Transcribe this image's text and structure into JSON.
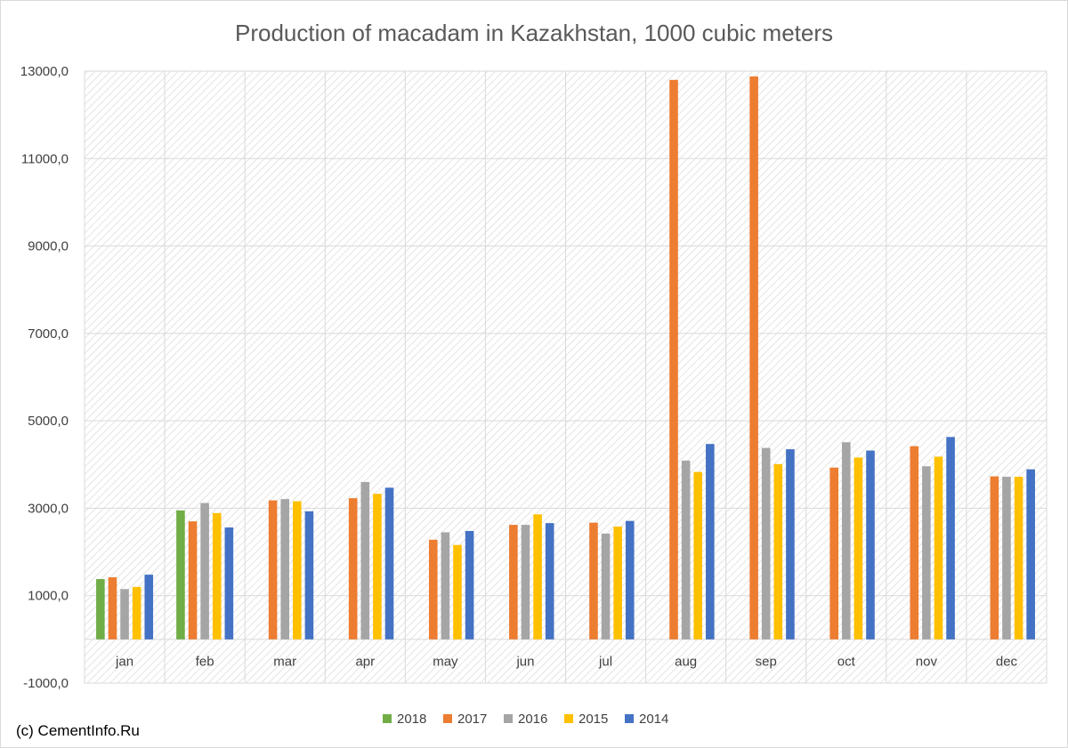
{
  "chart_data": {
    "type": "bar",
    "title": "Production of macadam in Kazakhstan, 1000 cubic meters",
    "categories": [
      "jan",
      "feb",
      "mar",
      "apr",
      "may",
      "jun",
      "jul",
      "aug",
      "sep",
      "oct",
      "nov",
      "dec"
    ],
    "series": [
      {
        "name": "2018",
        "color": "#70ad47",
        "values": [
          1380,
          2950,
          null,
          null,
          null,
          null,
          null,
          null,
          null,
          null,
          null,
          null
        ]
      },
      {
        "name": "2017",
        "color": "#ed7d31",
        "values": [
          1420,
          2700,
          3180,
          3230,
          2280,
          2620,
          2670,
          12800,
          12880,
          3930,
          4420,
          3730
        ]
      },
      {
        "name": "2016",
        "color": "#a5a5a5",
        "values": [
          1150,
          3120,
          3210,
          3600,
          2450,
          2620,
          2420,
          4090,
          4380,
          4510,
          3960,
          3720
        ]
      },
      {
        "name": "2015",
        "color": "#ffc000",
        "values": [
          1200,
          2890,
          3160,
          3330,
          2160,
          2860,
          2580,
          3830,
          4010,
          4160,
          4180,
          3720
        ]
      },
      {
        "name": "2014",
        "color": "#4472c4",
        "values": [
          1480,
          2560,
          2930,
          3470,
          2480,
          2660,
          2710,
          4470,
          4350,
          4320,
          4630,
          3890
        ]
      }
    ],
    "ylim": [
      -1000,
      13000
    ],
    "y_ticks": [
      "-1000,0",
      "1000,0",
      "3000,0",
      "5000,0",
      "7000,0",
      "9000,0",
      "11000,0",
      "13000,0"
    ],
    "y_tick_values": [
      -1000,
      1000,
      3000,
      5000,
      7000,
      9000,
      11000,
      13000
    ],
    "grid": true,
    "legend_position": "bottom",
    "xlabel": "",
    "ylabel": ""
  },
  "credit": "(c) CementInfo.Ru"
}
